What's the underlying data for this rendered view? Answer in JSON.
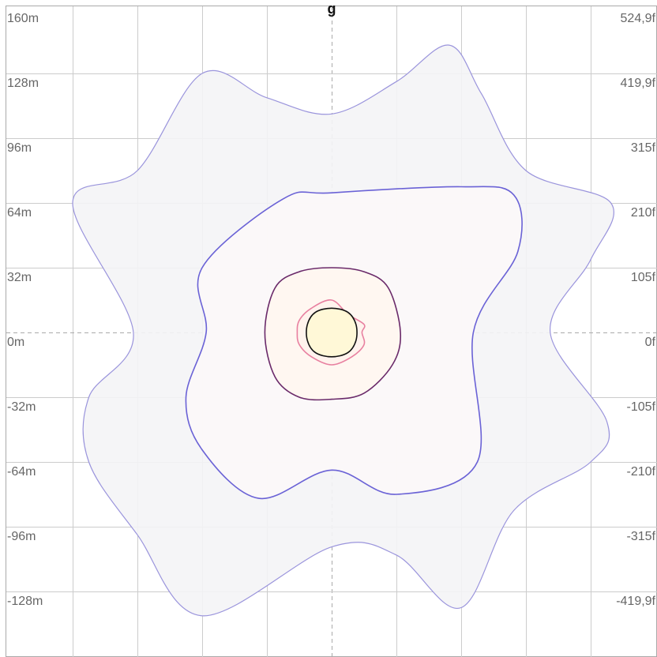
{
  "chart_data": {
    "type": "area",
    "title": "g",
    "grid": true,
    "xlim": [
      -128,
      128
    ],
    "ylim": [
      -160,
      160
    ],
    "y_ticks_left": [
      160,
      128,
      96,
      64,
      32,
      0,
      -32,
      -64,
      -96,
      -128
    ],
    "y_tick_labels_left": [
      "160m",
      "128m",
      "96m",
      "64m",
      "32m",
      "0m",
      "-32m",
      "-64m",
      "-96m",
      "-128m"
    ],
    "y_tick_labels_right": [
      "524,9f",
      "419,9f",
      "315f",
      "210f",
      "105f",
      "0f",
      "-105f",
      "-210f",
      "-315f",
      "-419,9f"
    ],
    "x_gridlines": [
      -128,
      -96,
      -64,
      -32,
      0,
      32,
      64,
      96,
      128
    ],
    "colors": {
      "grid": "#cccccc",
      "axis": "#aaaaaa",
      "labels": "#666666"
    },
    "series": [
      {
        "stroke": "#9a94dc",
        "fill": "#f4f4f6",
        "points": [
          [
            -64,
            128
          ],
          [
            -32,
            116
          ],
          [
            0,
            108
          ],
          [
            32,
            124
          ],
          [
            58,
            142
          ],
          [
            74,
            118
          ],
          [
            96,
            80
          ],
          [
            138,
            64
          ],
          [
            128,
            36
          ],
          [
            108,
            0
          ],
          [
            136,
            -44
          ],
          [
            128,
            -64
          ],
          [
            90,
            -88
          ],
          [
            64,
            -136
          ],
          [
            32,
            -110
          ],
          [
            0,
            -106
          ],
          [
            -64,
            -140
          ],
          [
            -96,
            -100
          ],
          [
            -120,
            -64
          ],
          [
            -120,
            -32
          ],
          [
            -98,
            0
          ],
          [
            -128,
            64
          ],
          [
            -96,
            80
          ]
        ]
      },
      {
        "stroke": "#6a62d6",
        "fill": "#fcf8f8",
        "points": [
          [
            -24,
            66
          ],
          [
            0,
            69
          ],
          [
            64,
            72
          ],
          [
            90,
            68
          ],
          [
            92,
            40
          ],
          [
            70,
            0
          ],
          [
            72,
            -64
          ],
          [
            32,
            -80
          ],
          [
            0,
            -68
          ],
          [
            -36,
            -82
          ],
          [
            -64,
            -58
          ],
          [
            -72,
            -32
          ],
          [
            -62,
            0
          ],
          [
            -64,
            32
          ]
        ]
      },
      {
        "stroke": "#6a2a6a",
        "fill": "#fff6f0",
        "points": [
          [
            0,
            32
          ],
          [
            16,
            30
          ],
          [
            28,
            22
          ],
          [
            34,
            0
          ],
          [
            30,
            -16
          ],
          [
            16,
            -30
          ],
          [
            0,
            -33
          ],
          [
            -16,
            -32
          ],
          [
            -28,
            -22
          ],
          [
            -33,
            0
          ],
          [
            -28,
            22
          ],
          [
            -16,
            30
          ]
        ]
      },
      {
        "stroke": "#e880a0",
        "fill": "#fff2ec",
        "points": [
          [
            0,
            16
          ],
          [
            8,
            9
          ],
          [
            16,
            4
          ],
          [
            15,
            0
          ],
          [
            16,
            -6
          ],
          [
            10,
            -12
          ],
          [
            0,
            -16
          ],
          [
            -10,
            -12
          ],
          [
            -16,
            -6
          ],
          [
            -17,
            0
          ],
          [
            -16,
            6
          ],
          [
            -10,
            12
          ]
        ]
      },
      {
        "stroke": "#111111",
        "fill": "#fff8d4",
        "points": [
          [
            0,
            12
          ],
          [
            8,
            10
          ],
          [
            12,
            4
          ],
          [
            12,
            -4
          ],
          [
            8,
            -10
          ],
          [
            0,
            -12
          ],
          [
            -8,
            -10
          ],
          [
            -12,
            -4
          ],
          [
            -12,
            4
          ],
          [
            -8,
            10
          ]
        ]
      }
    ]
  }
}
